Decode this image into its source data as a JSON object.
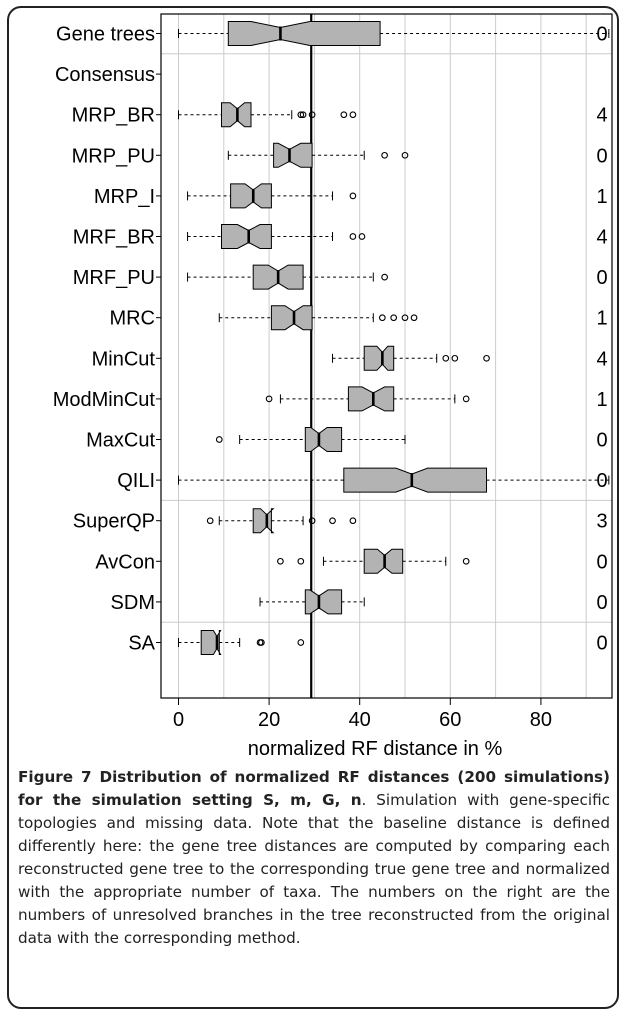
{
  "chart_data": {
    "type": "boxplot",
    "xlabel": "normalized RF distance in %",
    "xlim": [
      -4,
      96
    ],
    "xticks": [
      0,
      20,
      40,
      60,
      80
    ],
    "grid": true,
    "reference_line": 29.3,
    "box_color": "#b3b3b3",
    "rows": [
      {
        "label": "Gene trees",
        "count": "0",
        "box": true,
        "wlo": 0,
        "q1": 11,
        "med": 22.5,
        "q3": 44.5,
        "whi": 95,
        "notch": 6.5,
        "out": []
      },
      {
        "label": "Consensus",
        "count": "",
        "box": false
      },
      {
        "label": "MRP_BR",
        "count": "4",
        "box": true,
        "wlo": 0,
        "q1": 9.5,
        "med": 13,
        "q3": 16,
        "whi": 25,
        "notch": 1.6,
        "out": [
          27,
          27.5,
          29.5,
          36.5,
          38.5
        ]
      },
      {
        "label": "MRP_PU",
        "count": "0",
        "box": true,
        "wlo": 11,
        "q1": 21,
        "med": 24.5,
        "q3": 29.5,
        "whi": 41,
        "notch": 2.5,
        "out": [
          45.5,
          50
        ]
      },
      {
        "label": "MRP_I",
        "count": "1",
        "box": true,
        "wlo": 2,
        "q1": 11.5,
        "med": 16.5,
        "q3": 20.5,
        "whi": 34,
        "notch": 1.8,
        "out": [
          38.5
        ]
      },
      {
        "label": "MRF_BR",
        "count": "4",
        "box": true,
        "wlo": 2,
        "q1": 9.5,
        "med": 15.5,
        "q3": 20.5,
        "whi": 34,
        "notch": 2.5,
        "out": [
          38.5,
          40.5
        ]
      },
      {
        "label": "MRF_PU",
        "count": "0",
        "box": true,
        "wlo": 2,
        "q1": 16.5,
        "med": 22,
        "q3": 27.5,
        "whi": 43,
        "notch": 2.2,
        "out": [
          45.5
        ]
      },
      {
        "label": "MRC",
        "count": "1",
        "box": true,
        "wlo": 9,
        "q1": 20.5,
        "med": 25.5,
        "q3": 29.5,
        "whi": 43,
        "notch": 2,
        "out": [
          45,
          47.5,
          50,
          52
        ]
      },
      {
        "label": "MinCut",
        "count": "4",
        "box": true,
        "wlo": 34,
        "q1": 41,
        "med": 45,
        "q3": 47.5,
        "whi": 57,
        "notch": 1.2,
        "out": [
          59,
          61,
          68
        ]
      },
      {
        "label": "ModMinCut",
        "count": "1",
        "box": true,
        "wlo": 22.5,
        "q1": 37.5,
        "med": 43,
        "q3": 47.5,
        "whi": 61,
        "notch": 2.5,
        "out": [
          20,
          63.5
        ]
      },
      {
        "label": "MaxCut",
        "count": "0",
        "box": true,
        "wlo": 13.5,
        "q1": 28,
        "med": 31,
        "q3": 36,
        "whi": 50,
        "notch": 1.8,
        "out": [
          9
        ]
      },
      {
        "label": "QILI",
        "count": "0",
        "box": true,
        "wlo": 0,
        "q1": 36.5,
        "med": 51.5,
        "q3": 68,
        "whi": 95,
        "notch": 3.5,
        "out": []
      },
      {
        "label": "SuperQP",
        "count": "3",
        "box": true,
        "wlo": 9,
        "q1": 16.5,
        "med": 19.5,
        "q3": 20.5,
        "whi": 27.5,
        "notch": 1.4,
        "out": [
          7,
          29.5,
          34,
          38.5
        ]
      },
      {
        "label": "AvCon",
        "count": "0",
        "box": true,
        "wlo": 32,
        "q1": 41,
        "med": 45.5,
        "q3": 49.5,
        "whi": 59,
        "notch": 1.6,
        "out": [
          22.5,
          27,
          63.5
        ]
      },
      {
        "label": "SDM",
        "count": "0",
        "box": true,
        "wlo": 18,
        "q1": 28,
        "med": 31,
        "q3": 36,
        "whi": 41,
        "notch": 2,
        "out": []
      },
      {
        "label": "SA",
        "count": "0",
        "box": true,
        "wlo": 0,
        "q1": 5,
        "med": 8.5,
        "q3": 9,
        "whi": 13.5,
        "notch": 0.8,
        "out": [
          18,
          18.3,
          27
        ]
      }
    ]
  },
  "caption": {
    "title": "Figure 7 Distribution of normalized RF distances (200 simulations) for the simulation setting S, m, G, n",
    "body": ". Simulation with gene-specific topologies and missing data. Note that the baseline distance is defined differently here: the gene tree distances are computed by comparing each reconstructed gene tree to the corresponding true gene tree and normalized with the appropriate number of taxa. The numbers on the right are the numbers of unresolved branches in the tree reconstructed from the original data with the corresponding method."
  }
}
